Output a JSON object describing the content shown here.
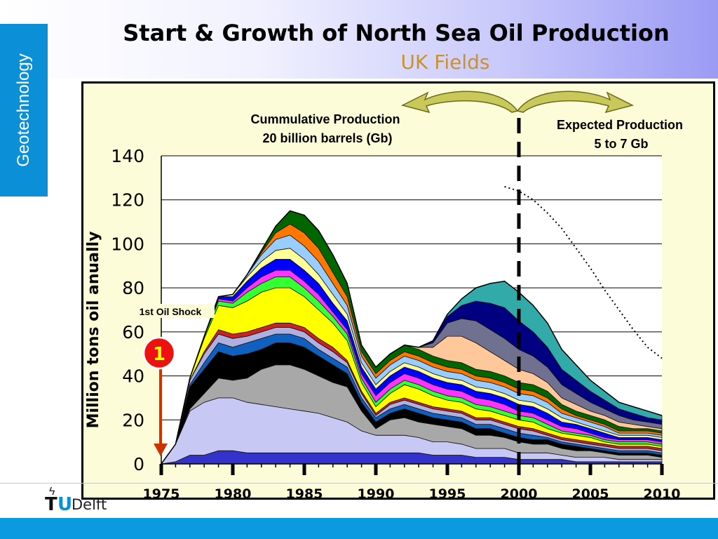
{
  "slide": {
    "side_tab": "Geotechnology",
    "title": "Start & Growth of North Sea Oil Production",
    "subtitle": "UK Fields",
    "logo_text_t": "T",
    "logo_text_u": "U",
    "logo_text_delft": "Delft"
  },
  "colors": {
    "accent_blue": "#0b8fd6",
    "subtitle": "#c9922e",
    "chart_bg": "#fcfcd8",
    "arrow_fill": "#c9c95a"
  },
  "chart_data": {
    "type": "area",
    "title": "",
    "ylabel": "Million tons oil anually",
    "xlabel": "",
    "ylim": [
      0,
      140
    ],
    "xlim": [
      1975,
      2010
    ],
    "yticks": [
      "0",
      "20",
      "40",
      "60",
      "80",
      "100",
      "120",
      "140"
    ],
    "xticks": [
      "1975",
      "1980",
      "1985",
      "1990",
      "1995",
      "2000",
      "2005",
      "2010"
    ],
    "grid": true,
    "x": [
      1975,
      1976,
      1977,
      1978,
      1979,
      1980,
      1981,
      1982,
      1983,
      1984,
      1985,
      1986,
      1987,
      1988,
      1989,
      1990,
      1991,
      1992,
      1993,
      1994,
      1995,
      1996,
      1997,
      1998,
      1999,
      2000,
      2001,
      2002,
      2003,
      2004,
      2005,
      2006,
      2007,
      2008,
      2009,
      2010
    ],
    "series": [
      {
        "color": "#3333cc",
        "values": [
          0,
          1,
          4,
          4,
          6,
          6,
          5,
          5,
          5,
          5,
          5,
          5,
          5,
          5,
          5,
          5,
          5,
          5,
          5,
          4,
          4,
          4,
          3,
          3,
          3,
          2,
          2,
          2,
          2,
          1,
          1,
          1,
          1,
          1,
          1,
          1
        ]
      },
      {
        "color": "#c8c8f5",
        "values": [
          0,
          8,
          20,
          24,
          24,
          24,
          23,
          22,
          21,
          20,
          19,
          18,
          16,
          14,
          10,
          8,
          8,
          8,
          7,
          6,
          6,
          5,
          4,
          4,
          4,
          3,
          3,
          3,
          2,
          2,
          2,
          2,
          1,
          1,
          1,
          1
        ]
      },
      {
        "color": "#a8a8a8",
        "values": [
          0,
          0,
          1,
          4,
          9,
          8,
          11,
          16,
          19,
          20,
          19,
          17,
          16,
          16,
          9,
          3,
          7,
          8,
          7,
          8,
          7,
          7,
          6,
          6,
          5,
          5,
          4,
          4,
          3,
          3,
          3,
          2,
          2,
          2,
          2,
          1
        ]
      },
      {
        "color": "#000000",
        "values": [
          0,
          0,
          10,
          11,
          12,
          11,
          11,
          9,
          10,
          10,
          10,
          9,
          8,
          6,
          4,
          3,
          3,
          4,
          4,
          3,
          3,
          3,
          3,
          3,
          2,
          2,
          2,
          2,
          2,
          2,
          1,
          1,
          1,
          1,
          1,
          1
        ]
      },
      {
        "color": "#1060c0",
        "values": [
          0,
          0,
          1,
          3,
          4,
          4,
          5,
          5,
          4,
          4,
          4,
          3,
          3,
          3,
          2,
          2,
          2,
          2,
          2,
          2,
          2,
          2,
          2,
          2,
          2,
          2,
          2,
          1,
          1,
          1,
          1,
          1,
          1,
          1,
          1,
          1
        ]
      },
      {
        "color": "#b0b0e0",
        "values": [
          0,
          0,
          2,
          4,
          4,
          4,
          3,
          3,
          3,
          3,
          3,
          3,
          3,
          2,
          2,
          1,
          2,
          2,
          2,
          2,
          2,
          2,
          2,
          2,
          2,
          2,
          2,
          1,
          1,
          1,
          1,
          1,
          1,
          1,
          1,
          1
        ]
      },
      {
        "color": "#cc2222",
        "values": [
          0,
          0,
          0,
          1,
          2,
          2,
          2,
          2,
          2,
          2,
          2,
          2,
          2,
          1,
          1,
          1,
          1,
          1,
          1,
          1,
          1,
          1,
          1,
          1,
          1,
          1,
          1,
          1,
          1,
          1,
          1,
          1,
          1,
          1,
          1,
          1
        ]
      },
      {
        "color": "#ffff00",
        "values": [
          0,
          0,
          1,
          6,
          11,
          12,
          14,
          16,
          16,
          16,
          14,
          13,
          11,
          9,
          4,
          3,
          4,
          6,
          6,
          5,
          4,
          4,
          4,
          3,
          3,
          3,
          3,
          2,
          2,
          2,
          2,
          1,
          1,
          1,
          1,
          1
        ]
      },
      {
        "color": "#33ff33",
        "values": [
          0,
          0,
          0,
          1,
          2,
          2,
          4,
          4,
          5,
          5,
          4,
          4,
          3,
          3,
          2,
          2,
          2,
          2,
          2,
          2,
          2,
          2,
          2,
          2,
          2,
          2,
          2,
          2,
          1,
          1,
          1,
          1,
          1,
          1,
          1,
          1
        ]
      },
      {
        "color": "#ff33ff",
        "values": [
          0,
          0,
          0,
          0,
          1,
          1,
          2,
          3,
          3,
          3,
          3,
          3,
          2,
          2,
          2,
          3,
          3,
          3,
          3,
          3,
          3,
          3,
          3,
          3,
          3,
          2,
          2,
          2,
          2,
          2,
          1,
          1,
          1,
          1,
          1,
          1
        ]
      },
      {
        "color": "#0000ff",
        "values": [
          0,
          0,
          0,
          0,
          1,
          2,
          3,
          4,
          5,
          5,
          5,
          5,
          4,
          4,
          3,
          3,
          3,
          3,
          3,
          3,
          3,
          3,
          3,
          3,
          3,
          3,
          3,
          3,
          2,
          2,
          2,
          2,
          1,
          1,
          1,
          1
        ]
      },
      {
        "color": "#ffff99",
        "values": [
          0,
          0,
          0,
          0,
          0,
          1,
          2,
          3,
          4,
          5,
          5,
          4,
          4,
          3,
          2,
          2,
          2,
          2,
          2,
          2,
          2,
          2,
          2,
          2,
          2,
          2,
          2,
          2,
          2,
          1,
          1,
          1,
          1,
          1,
          1,
          1
        ]
      },
      {
        "color": "#99ccff",
        "values": [
          0,
          0,
          0,
          0,
          0,
          0,
          1,
          3,
          5,
          6,
          6,
          6,
          5,
          4,
          3,
          3,
          3,
          3,
          3,
          3,
          3,
          3,
          3,
          3,
          3,
          3,
          3,
          3,
          2,
          2,
          2,
          2,
          1,
          1,
          1,
          1
        ]
      },
      {
        "color": "#ff7700",
        "values": [
          0,
          0,
          0,
          0,
          0,
          0,
          0,
          1,
          3,
          5,
          6,
          6,
          5,
          4,
          2,
          2,
          2,
          2,
          2,
          2,
          2,
          2,
          2,
          2,
          2,
          2,
          2,
          2,
          2,
          1,
          1,
          1,
          1,
          1,
          1,
          1
        ]
      },
      {
        "color": "#006600",
        "values": [
          0,
          0,
          0,
          0,
          0,
          0,
          0,
          1,
          3,
          6,
          8,
          8,
          8,
          6,
          3,
          3,
          3,
          3,
          3,
          3,
          3,
          3,
          3,
          3,
          3,
          3,
          3,
          3,
          2,
          2,
          2,
          2,
          2,
          1,
          1,
          1
        ]
      },
      {
        "color": "#ffc89a",
        "values": [
          0,
          0,
          0,
          0,
          0,
          0,
          0,
          0,
          0,
          0,
          0,
          0,
          0,
          0,
          0,
          0,
          0,
          0,
          1,
          4,
          11,
          12,
          12,
          9,
          7,
          6,
          5,
          4,
          3,
          3,
          2,
          2,
          2,
          2,
          1,
          1
        ]
      },
      {
        "color": "#707090",
        "values": [
          0,
          0,
          0,
          0,
          0,
          0,
          0,
          0,
          0,
          0,
          0,
          0,
          0,
          0,
          0,
          0,
          0,
          0,
          0,
          2,
          6,
          8,
          10,
          10,
          10,
          9,
          8,
          7,
          6,
          5,
          4,
          3,
          3,
          2,
          2,
          2
        ]
      },
      {
        "color": "#000080",
        "values": [
          0,
          0,
          0,
          0,
          0,
          0,
          0,
          0,
          0,
          0,
          0,
          0,
          0,
          0,
          0,
          0,
          0,
          0,
          0,
          1,
          3,
          6,
          9,
          12,
          14,
          13,
          11,
          9,
          7,
          6,
          5,
          4,
          3,
          3,
          2,
          2
        ]
      },
      {
        "color": "#33aaaa",
        "values": [
          0,
          0,
          0,
          0,
          0,
          0,
          0,
          0,
          0,
          0,
          0,
          0,
          0,
          0,
          0,
          0,
          0,
          0,
          0,
          0,
          1,
          3,
          6,
          9,
          12,
          13,
          12,
          11,
          9,
          7,
          5,
          4,
          3,
          3,
          3,
          2
        ]
      }
    ],
    "annotations": {
      "cumulative_line1": "Cummulative Production",
      "cumulative_line2": "20 billion barrels (Gb)",
      "expected_line1": "Expected Production",
      "expected_line2": "5 to 7 Gb",
      "oil_shock_label": "1st Oil Shock",
      "oil_shock_badge": "1",
      "oil_shock_year": 1974,
      "divider_year": 2000
    },
    "expected_curve": {
      "x": [
        1999,
        2000,
        2001,
        2002,
        2003,
        2004,
        2005,
        2006,
        2007,
        2008,
        2009,
        2010
      ],
      "values": [
        126,
        124,
        120,
        114,
        107,
        98,
        89,
        79,
        70,
        61,
        53,
        48
      ]
    }
  }
}
